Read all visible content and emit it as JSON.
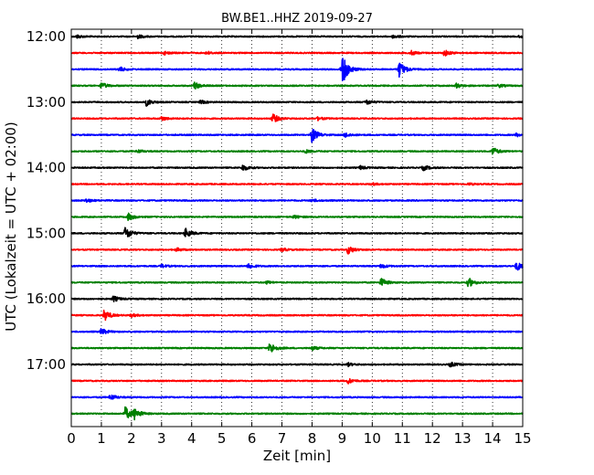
{
  "chart_data": {
    "type": "line",
    "title": "BW.BE1..HHZ 2019-09-27",
    "xlabel": "Zeit  [min]",
    "ylabel": "UTC (Lokalzeit = UTC + 02:00)",
    "xlim": [
      0,
      15
    ],
    "x_ticks": [
      0,
      1,
      2,
      3,
      4,
      5,
      6,
      7,
      8,
      9,
      10,
      11,
      12,
      13,
      14,
      15
    ],
    "y_tick_labels": [
      "12:00",
      "13:00",
      "14:00",
      "15:00",
      "16:00",
      "17:00"
    ],
    "grid": "vertical dotted",
    "row_interval_minutes": 15,
    "row_colors": [
      "#000000",
      "#ff0000",
      "#0000ff",
      "#008000"
    ],
    "rows": [
      {
        "start": "12:00",
        "events": [
          {
            "t": 0.2,
            "a": 0.3
          },
          {
            "t": 2.2,
            "a": 0.35
          },
          {
            "t": 10.7,
            "a": 0.3
          },
          {
            "t": 14.9,
            "a": 0.25
          }
        ]
      },
      {
        "start": "12:15",
        "events": [
          {
            "t": 3.1,
            "a": 0.3
          },
          {
            "t": 4.5,
            "a": 0.3
          },
          {
            "t": 11.3,
            "a": 0.4
          },
          {
            "t": 12.4,
            "a": 0.6
          }
        ]
      },
      {
        "start": "12:30",
        "events": [
          {
            "t": 1.6,
            "a": 0.45
          },
          {
            "t": 9.0,
            "a": 3.2
          },
          {
            "t": 10.9,
            "a": 1.6
          }
        ]
      },
      {
        "start": "12:45",
        "events": [
          {
            "t": 1.0,
            "a": 0.6
          },
          {
            "t": 4.1,
            "a": 0.7
          },
          {
            "t": 12.8,
            "a": 0.4
          },
          {
            "t": 14.2,
            "a": 0.3
          }
        ]
      },
      {
        "start": "13:00",
        "events": [
          {
            "t": 2.5,
            "a": 0.7
          },
          {
            "t": 4.3,
            "a": 0.3
          },
          {
            "t": 9.8,
            "a": 0.5
          }
        ]
      },
      {
        "start": "13:15",
        "events": [
          {
            "t": 3.0,
            "a": 0.4
          },
          {
            "t": 6.7,
            "a": 0.9
          },
          {
            "t": 8.2,
            "a": 0.3
          }
        ]
      },
      {
        "start": "13:30",
        "events": [
          {
            "t": 8.0,
            "a": 1.4
          },
          {
            "t": 9.1,
            "a": 0.45
          },
          {
            "t": 14.8,
            "a": 0.3
          }
        ]
      },
      {
        "start": "13:45",
        "events": [
          {
            "t": 2.2,
            "a": 0.3
          },
          {
            "t": 7.8,
            "a": 0.3
          },
          {
            "t": 14.0,
            "a": 0.8
          }
        ]
      },
      {
        "start": "14:00",
        "events": [
          {
            "t": 5.7,
            "a": 0.6
          },
          {
            "t": 9.6,
            "a": 0.35
          },
          {
            "t": 11.7,
            "a": 0.5
          }
        ]
      },
      {
        "start": "14:15",
        "events": [
          {
            "t": 10.0,
            "a": 0.2
          },
          {
            "t": 13.2,
            "a": 0.2
          }
        ]
      },
      {
        "start": "14:30",
        "events": [
          {
            "t": 0.5,
            "a": 0.35
          },
          {
            "t": 8.0,
            "a": 0.25
          }
        ]
      },
      {
        "start": "14:45",
        "events": [
          {
            "t": 1.9,
            "a": 0.7
          },
          {
            "t": 7.4,
            "a": 0.3
          }
        ]
      },
      {
        "start": "15:00",
        "events": [
          {
            "t": 1.8,
            "a": 1.3
          },
          {
            "t": 3.8,
            "a": 0.9
          }
        ]
      },
      {
        "start": "15:15",
        "events": [
          {
            "t": 3.5,
            "a": 0.3
          },
          {
            "t": 7.0,
            "a": 0.3
          },
          {
            "t": 9.2,
            "a": 0.8
          }
        ]
      },
      {
        "start": "15:30",
        "events": [
          {
            "t": 3.0,
            "a": 0.3
          },
          {
            "t": 5.9,
            "a": 0.5
          },
          {
            "t": 10.3,
            "a": 0.4
          },
          {
            "t": 14.8,
            "a": 0.9
          }
        ]
      },
      {
        "start": "15:45",
        "events": [
          {
            "t": 10.3,
            "a": 0.8
          },
          {
            "t": 13.2,
            "a": 0.9
          },
          {
            "t": 6.5,
            "a": 0.25
          }
        ]
      },
      {
        "start": "16:00",
        "events": [
          {
            "t": 1.4,
            "a": 0.55
          }
        ]
      },
      {
        "start": "16:15",
        "events": [
          {
            "t": 1.1,
            "a": 1.1
          },
          {
            "t": 2.0,
            "a": 0.3
          }
        ]
      },
      {
        "start": "16:30",
        "events": [
          {
            "t": 1.0,
            "a": 0.6
          }
        ]
      },
      {
        "start": "16:45",
        "events": [
          {
            "t": 6.6,
            "a": 1.1
          },
          {
            "t": 8.0,
            "a": 0.4
          }
        ]
      },
      {
        "start": "17:00",
        "events": [
          {
            "t": 9.2,
            "a": 0.3
          },
          {
            "t": 12.6,
            "a": 0.45
          }
        ]
      },
      {
        "start": "17:15",
        "events": [
          {
            "t": 9.2,
            "a": 0.5
          }
        ]
      },
      {
        "start": "17:30",
        "events": [
          {
            "t": 1.3,
            "a": 0.55
          }
        ]
      },
      {
        "start": "17:45",
        "events": [
          {
            "t": 1.8,
            "a": 1.3
          },
          {
            "t": 2.1,
            "a": 1.0
          }
        ]
      }
    ]
  }
}
